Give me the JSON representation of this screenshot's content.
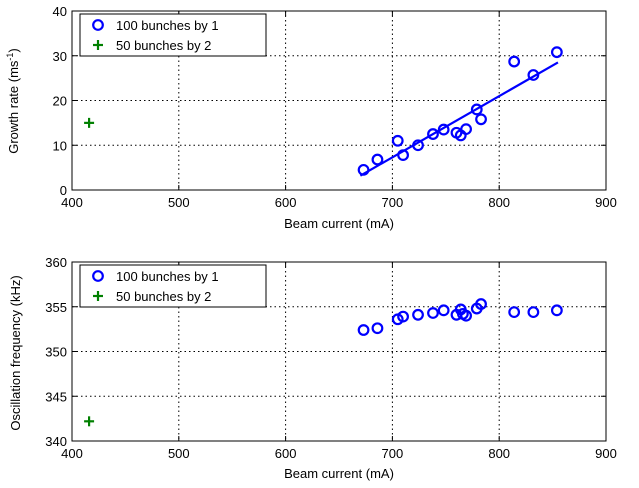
{
  "chart_data": [
    {
      "type": "scatter",
      "xlabel": "Beam current (mA)",
      "ylabel_main": "Growth rate (ms",
      "ylabel_sup": "-1",
      "ylabel_close": ")",
      "xlim": [
        400,
        900
      ],
      "ylim": [
        0,
        40
      ],
      "xticks": [
        400,
        500,
        600,
        700,
        800,
        900
      ],
      "yticks": [
        0,
        10,
        20,
        30,
        40
      ],
      "grid": true,
      "legend_position": "top-left",
      "series": [
        {
          "name": "100 bunches by 1",
          "marker": "circle",
          "color": "#0000ff",
          "points": [
            [
              673,
              4.5
            ],
            [
              686,
              6.8
            ],
            [
              705,
              11.0
            ],
            [
              710,
              7.8
            ],
            [
              724,
              10.0
            ],
            [
              738,
              12.5
            ],
            [
              748,
              13.5
            ],
            [
              760,
              12.8
            ],
            [
              764,
              12.2
            ],
            [
              769,
              13.6
            ],
            [
              779,
              18.0
            ],
            [
              783,
              15.8
            ],
            [
              814,
              28.7
            ],
            [
              832,
              25.7
            ],
            [
              854,
              30.8
            ]
          ]
        },
        {
          "name": "50 bunches by 2",
          "marker": "plus",
          "color": "#008000",
          "points": [
            [
              416,
              15.0
            ]
          ]
        }
      ],
      "fit_line": {
        "color": "#0000ff",
        "points": [
          [
            670,
            3.2
          ],
          [
            855,
            28.5
          ]
        ]
      }
    },
    {
      "type": "scatter",
      "xlabel": "Beam current (mA)",
      "ylabel": "Oscillation frequency (kHz)",
      "xlim": [
        400,
        900
      ],
      "ylim": [
        340,
        360
      ],
      "xticks": [
        400,
        500,
        600,
        700,
        800,
        900
      ],
      "yticks": [
        340,
        345,
        350,
        355,
        360
      ],
      "grid": true,
      "legend_position": "top-left",
      "series": [
        {
          "name": "100 bunches by 1",
          "marker": "circle",
          "color": "#0000ff",
          "points": [
            [
              673,
              352.4
            ],
            [
              686,
              352.6
            ],
            [
              705,
              353.6
            ],
            [
              710,
              353.9
            ],
            [
              724,
              354.1
            ],
            [
              738,
              354.3
            ],
            [
              748,
              354.6
            ],
            [
              760,
              354.1
            ],
            [
              764,
              354.7
            ],
            [
              766,
              354.2
            ],
            [
              769,
              354.0
            ],
            [
              779,
              354.8
            ],
            [
              783,
              355.3
            ],
            [
              814,
              354.4
            ],
            [
              832,
              354.4
            ],
            [
              854,
              354.6
            ]
          ]
        },
        {
          "name": "50 bunches by 2",
          "marker": "plus",
          "color": "#008000",
          "points": [
            [
              416,
              342.2
            ]
          ]
        }
      ]
    }
  ]
}
